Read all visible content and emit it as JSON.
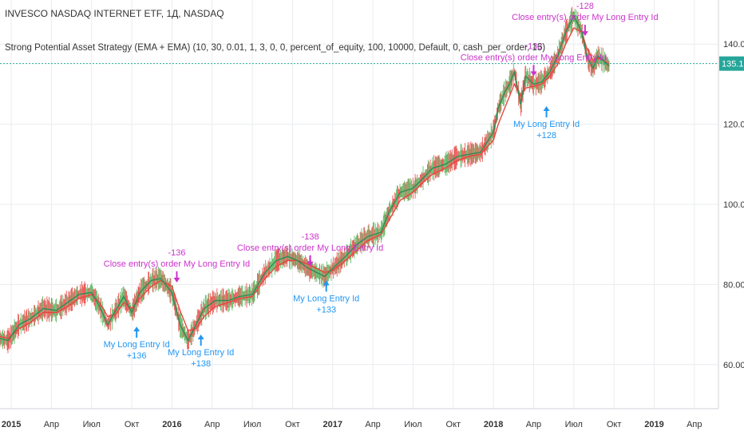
{
  "header": {
    "symbol_title": "INVESCO NASDAQ INTERNET ETF, 1Д, NASDAQ",
    "strategy_title": "Strong Potential Asset Strategy (EMA + EMA) (10, 30, 0.01, 1, 3, 0, 0, percent_of_equity, 100, 10000, Default, 0, cash_per_order, 15)"
  },
  "colors": {
    "background": "#ffffff",
    "grid": "#e9ecef",
    "axis_text": "#333333",
    "ema_fast": "#2e8b57",
    "ema_slow": "#e8453c",
    "entry": "#2196f3",
    "exit": "#cc33cc",
    "last_price_line": "#26a69a",
    "candle_up": "#4caf50",
    "candle_down": "#e53935"
  },
  "chart_data": {
    "type": "line",
    "title": "INVESCO NASDAQ INTERNET ETF, 1Д, NASDAQ",
    "subtitle": "Strong Potential Asset Strategy (EMA + EMA) (10, 30, 0.01, 1, 3, 0, 0, percent_of_equity, 100, 10000, Default, 0, cash_per_order, 15)",
    "x_ticks": [
      {
        "label": "2015",
        "x": 2015.0,
        "bold": true
      },
      {
        "label": "Апр",
        "x": 2015.25,
        "bold": false
      },
      {
        "label": "Июл",
        "x": 2015.5,
        "bold": false
      },
      {
        "label": "Окт",
        "x": 2015.75,
        "bold": false
      },
      {
        "label": "2016",
        "x": 2016.0,
        "bold": true
      },
      {
        "label": "Апр",
        "x": 2016.25,
        "bold": false
      },
      {
        "label": "Июл",
        "x": 2016.5,
        "bold": false
      },
      {
        "label": "Окт",
        "x": 2016.75,
        "bold": false
      },
      {
        "label": "2017",
        "x": 2017.0,
        "bold": true
      },
      {
        "label": "Апр",
        "x": 2017.25,
        "bold": false
      },
      {
        "label": "Июл",
        "x": 2017.5,
        "bold": false
      },
      {
        "label": "Окт",
        "x": 2017.75,
        "bold": false
      },
      {
        "label": "2018",
        "x": 2018.0,
        "bold": true
      },
      {
        "label": "Апр",
        "x": 2018.25,
        "bold": false
      },
      {
        "label": "Июл",
        "x": 2018.5,
        "bold": false
      },
      {
        "label": "Окт",
        "x": 2018.75,
        "bold": false
      },
      {
        "label": "2019",
        "x": 2019.0,
        "bold": true
      },
      {
        "label": "Апр",
        "x": 2019.25,
        "bold": false
      }
    ],
    "y_ticks": [
      {
        "label": "60.00",
        "y": 60
      },
      {
        "label": "80.00",
        "y": 80
      },
      {
        "label": "100.00",
        "y": 100
      },
      {
        "label": "120.00",
        "y": 120
      },
      {
        "label": "140.00",
        "y": 140
      }
    ],
    "xlim": [
      2014.93,
      2019.4
    ],
    "ylim": [
      49,
      151
    ],
    "grid": true,
    "last_price": {
      "value": 135.13,
      "label": "135.13"
    },
    "series": [
      {
        "key": "fast",
        "x": [
          2014.93,
          2014.98,
          2015.05,
          2015.12,
          2015.2,
          2015.28,
          2015.35,
          2015.42,
          2015.5,
          2015.55,
          2015.6,
          2015.65,
          2015.7,
          2015.75,
          2015.8,
          2015.87,
          2015.93,
          2016.0,
          2016.05,
          2016.1,
          2016.15,
          2016.2,
          2016.27,
          2016.35,
          2016.42,
          2016.5,
          2016.58,
          2016.65,
          2016.72,
          2016.78,
          2016.85,
          2016.9,
          2016.95,
          2017.0,
          2017.08,
          2017.15,
          2017.22,
          2017.3,
          2017.35,
          2017.42,
          2017.5,
          2017.55,
          2017.62,
          2017.7,
          2017.78,
          2017.85,
          2017.92,
          2018.0,
          2018.03,
          2018.07,
          2018.1,
          2018.13,
          2018.17,
          2018.2,
          2018.25,
          2018.3,
          2018.35,
          2018.4,
          2018.45,
          2018.5,
          2018.55,
          2018.58,
          2018.62,
          2018.65,
          2018.68,
          2018.72
        ],
        "values": [
          66.5,
          66.0,
          70.0,
          71.5,
          74.0,
          73.5,
          75.5,
          77.5,
          78.0,
          74.5,
          70.0,
          73.5,
          77.0,
          73.0,
          78.0,
          81.0,
          81.5,
          78.0,
          70.0,
          66.0,
          70.0,
          74.0,
          76.0,
          76.0,
          77.0,
          77.5,
          83.0,
          86.0,
          87.0,
          86.0,
          84.0,
          83.0,
          82.0,
          84.0,
          87.0,
          90.0,
          92.0,
          93.0,
          98.0,
          103.0,
          104.0,
          106.0,
          109.0,
          110.0,
          112.0,
          112.5,
          113.0,
          118.0,
          124.0,
          128.0,
          130.0,
          133.0,
          125.0,
          132.0,
          130.0,
          130.5,
          133.0,
          137.0,
          143.0,
          147.0,
          143.0,
          137.0,
          134.0,
          137.0,
          136.0,
          134.5
        ]
      },
      {
        "key": "slow",
        "x": [
          2014.93,
          2014.98,
          2015.05,
          2015.12,
          2015.2,
          2015.28,
          2015.35,
          2015.42,
          2015.5,
          2015.55,
          2015.6,
          2015.65,
          2015.7,
          2015.75,
          2015.8,
          2015.87,
          2015.93,
          2016.0,
          2016.05,
          2016.1,
          2016.15,
          2016.2,
          2016.27,
          2016.35,
          2016.42,
          2016.5,
          2016.58,
          2016.65,
          2016.72,
          2016.78,
          2016.85,
          2016.9,
          2016.95,
          2017.0,
          2017.08,
          2017.15,
          2017.22,
          2017.3,
          2017.35,
          2017.42,
          2017.5,
          2017.55,
          2017.62,
          2017.7,
          2017.78,
          2017.85,
          2017.92,
          2018.0,
          2018.03,
          2018.07,
          2018.1,
          2018.13,
          2018.17,
          2018.2,
          2018.25,
          2018.3,
          2018.35,
          2018.4,
          2018.45,
          2018.5,
          2018.55,
          2018.58,
          2018.62,
          2018.65,
          2018.68,
          2018.72
        ],
        "values": [
          67.0,
          66.5,
          69.0,
          70.5,
          73.0,
          73.0,
          74.5,
          76.5,
          77.5,
          75.5,
          72.0,
          72.5,
          75.5,
          74.0,
          76.5,
          79.5,
          81.0,
          79.5,
          73.5,
          68.5,
          69.0,
          72.0,
          74.5,
          75.5,
          76.5,
          77.0,
          81.5,
          84.5,
          86.0,
          86.0,
          85.0,
          84.0,
          83.0,
          83.5,
          86.0,
          88.5,
          91.0,
          92.5,
          96.0,
          101.0,
          103.0,
          105.0,
          107.5,
          109.0,
          111.0,
          112.0,
          112.5,
          116.0,
          120.0,
          124.0,
          127.0,
          130.0,
          127.0,
          129.0,
          129.5,
          130.0,
          132.0,
          135.0,
          140.0,
          144.0,
          143.0,
          139.0,
          136.0,
          136.5,
          136.0,
          135.0
        ]
      }
    ],
    "trades": [
      {
        "kind": "entry",
        "x": 2015.78,
        "y": 69.5,
        "label": "My Long Entry Id",
        "pnl": "+136"
      },
      {
        "kind": "exit",
        "x": 2016.03,
        "y": 80.5,
        "label": "Close entry(s) order My Long Entry Id",
        "pnl": "-136"
      },
      {
        "kind": "entry",
        "x": 2016.18,
        "y": 67.5,
        "label": "My Long Entry Id",
        "pnl": "+138"
      },
      {
        "kind": "exit",
        "x": 2016.86,
        "y": 84.5,
        "label": "Close entry(s) order My Long Entry Id",
        "pnl": "-138"
      },
      {
        "kind": "entry",
        "x": 2016.96,
        "y": 81.0,
        "label": "My Long Entry Id",
        "pnl": "+133"
      },
      {
        "kind": "exit",
        "x": 2018.25,
        "y": 132.0,
        "label": "Close entry(s) order My Long Entry Id",
        "pnl": "-133"
      },
      {
        "kind": "entry",
        "x": 2018.33,
        "y": 124.5,
        "label": "My Long Entry Id",
        "pnl": "+128"
      },
      {
        "kind": "exit",
        "x": 2018.57,
        "y": 142.0,
        "label": "Close entry(s) order My Long Entry Id",
        "pnl": "-128"
      }
    ]
  }
}
